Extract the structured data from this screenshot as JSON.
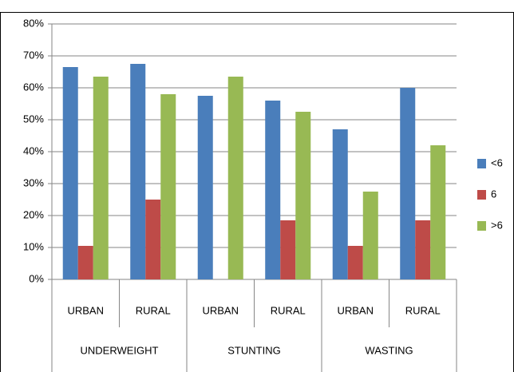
{
  "chart_data": {
    "type": "bar",
    "groups": [
      "UNDERWEIGHT",
      "STUNTING",
      "WASTING"
    ],
    "categories": [
      "URBAN",
      "RURAL",
      "URBAN",
      "RURAL",
      "URBAN",
      "RURAL"
    ],
    "series": [
      {
        "name": "<6",
        "color": "#4a7ebb",
        "values": [
          66.5,
          67.5,
          57.5,
          56,
          47,
          60
        ]
      },
      {
        "name": "6",
        "color": "#be4b48",
        "values": [
          10.5,
          25,
          null,
          18.5,
          10.5,
          18.5
        ]
      },
      {
        "name": ">6",
        "color": "#98b954",
        "values": [
          63.5,
          58,
          63.5,
          52.5,
          27.5,
          42
        ]
      }
    ],
    "ylim": [
      0,
      80
    ],
    "yticks": [
      {
        "value": 0,
        "label": "0%"
      },
      {
        "value": 10,
        "label": "10%"
      },
      {
        "value": 20,
        "label": "20%"
      },
      {
        "value": 30,
        "label": "30%"
      },
      {
        "value": 40,
        "label": "40%"
      },
      {
        "value": 50,
        "label": "50%"
      },
      {
        "value": 60,
        "label": "60%"
      },
      {
        "value": 70,
        "label": "70%"
      },
      {
        "value": 80,
        "label": "80%"
      }
    ],
    "grid": true,
    "legend": "right"
  }
}
